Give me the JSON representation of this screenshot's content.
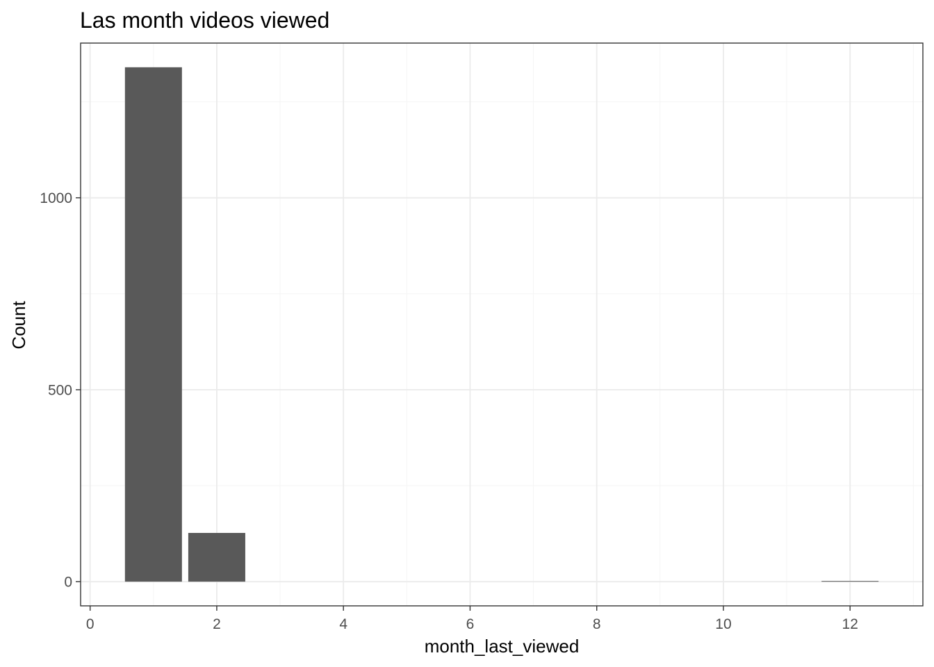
{
  "chart_data": {
    "type": "bar",
    "title": "Las month videos viewed",
    "xlabel": "month_last_viewed",
    "ylabel": "Count",
    "x": [
      1,
      2,
      12
    ],
    "values": [
      1340,
      127,
      1
    ],
    "bar_width": 0.9,
    "xlim": [
      -0.15,
      13.15
    ],
    "ylim": [
      -63,
      1403
    ],
    "x_ticks": [
      0,
      2,
      4,
      6,
      8,
      10,
      12
    ],
    "x_tick_labels": [
      "0",
      "2",
      "4",
      "6",
      "8",
      "10",
      "12"
    ],
    "y_ticks": [
      0,
      500,
      1000
    ],
    "y_tick_labels": [
      "0",
      "500",
      "1000"
    ],
    "x_minor_grid": [
      1,
      3,
      5,
      7,
      9,
      11,
      13
    ],
    "y_minor_grid": [
      250,
      750,
      1250
    ],
    "grid": true,
    "legend": "none",
    "colors": {
      "bar": "#595959",
      "grid_major": "#ebebeb",
      "grid_minor": "#f5f5f5",
      "panel_border": "#333333",
      "tick_text": "#4d4d4d",
      "text": "#000000"
    }
  }
}
